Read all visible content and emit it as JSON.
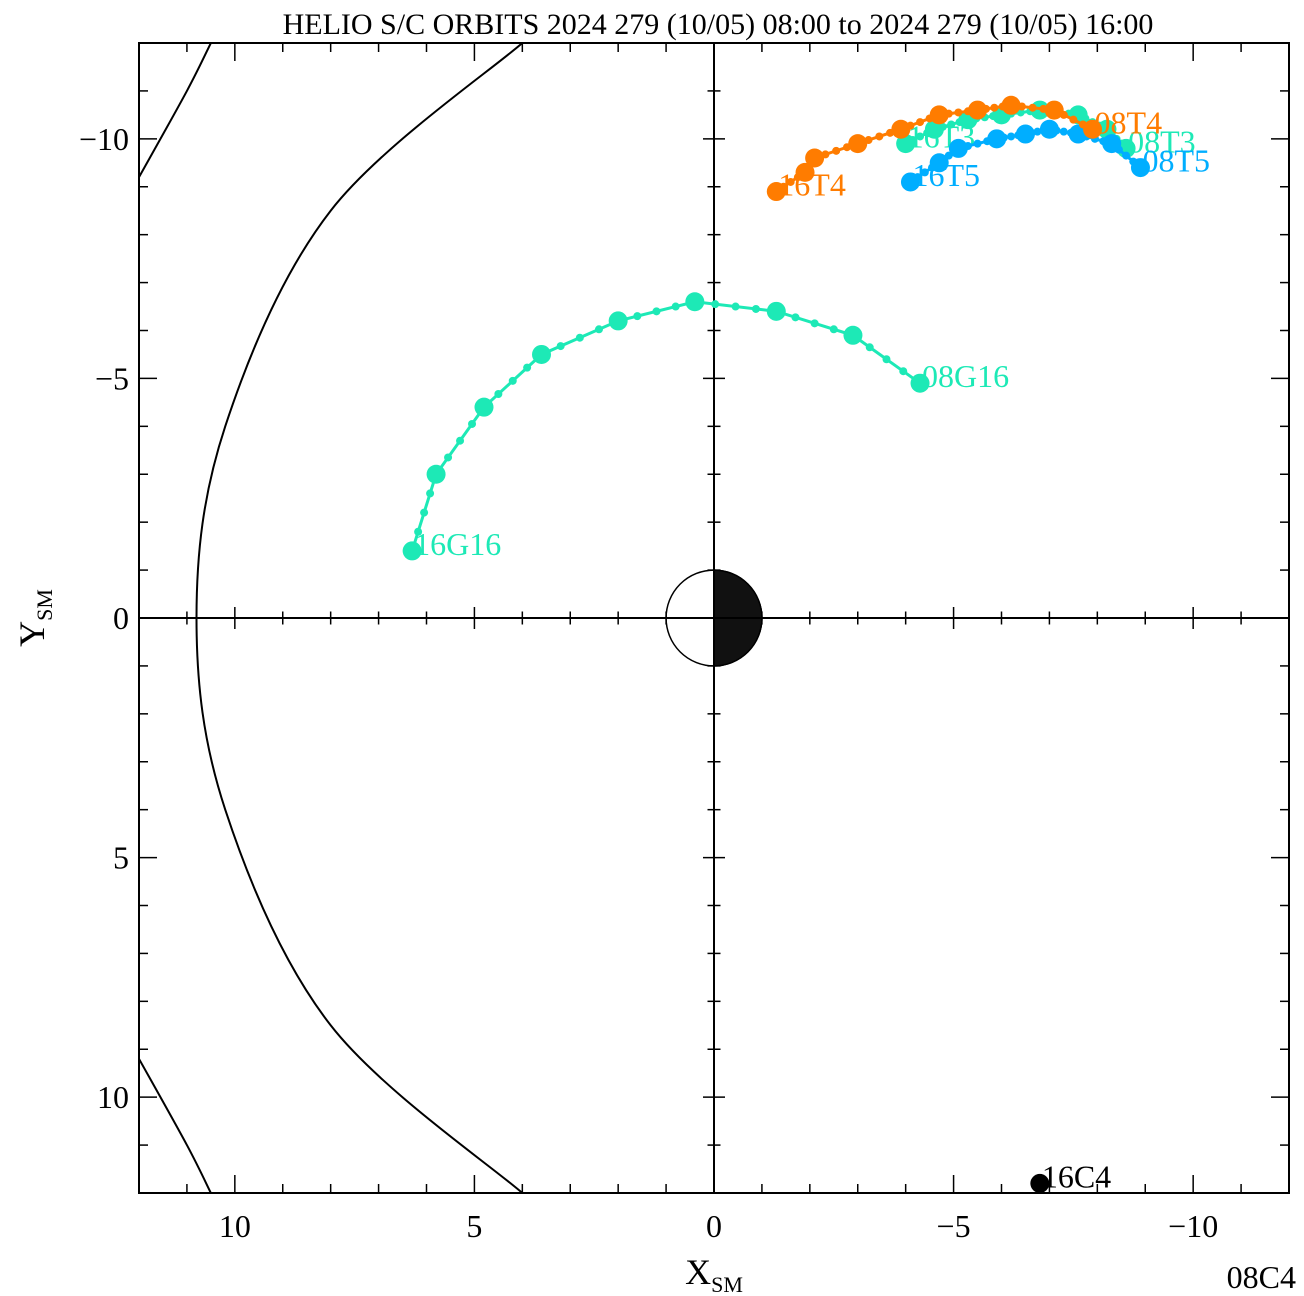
{
  "title": "HELIO S/C ORBITS 2024 279 (10/05) 08:00 to 2024 279 (10/05) 16:00",
  "corner_label": "08C4",
  "chart_data": {
    "type": "scatter",
    "title": "HELIO S/C ORBITS 2024 279 (10/05) 08:00 to 2024 279 (10/05) 16:00",
    "xlabel": {
      "main": "X",
      "sub": "SM"
    },
    "ylabel": {
      "main": "Y",
      "sub": "SM"
    },
    "xlim": [
      12,
      -12
    ],
    "ylim": [
      12,
      -12
    ],
    "x_ticks": [
      10,
      5,
      0,
      -5,
      -10
    ],
    "x_tick_labels": [
      "10",
      "5",
      "0",
      "−5",
      "−10"
    ],
    "y_ticks": [
      -10,
      -5,
      0,
      5,
      10
    ],
    "y_tick_labels": [
      "−10",
      "−5",
      "0",
      "5",
      "10"
    ],
    "grid": false,
    "boundaries": [
      {
        "type": "magnetopause",
        "points": [
          [
            12.0,
            -9.2
          ],
          [
            11.0,
            -11.0
          ],
          [
            10.5,
            -12.0
          ]
        ]
      },
      {
        "type": "bow-shock",
        "points": [
          [
            4.0,
            -12.0
          ],
          [
            8.0,
            -8.5
          ],
          [
            10.2,
            -4.0
          ],
          [
            10.8,
            0.0
          ],
          [
            10.2,
            4.0
          ],
          [
            8.0,
            8.5
          ],
          [
            4.0,
            12.0
          ]
        ]
      },
      {
        "type": "magnetopause",
        "points": [
          [
            12.0,
            9.2
          ],
          [
            11.0,
            11.0
          ],
          [
            10.5,
            12.0
          ]
        ]
      }
    ],
    "series": [
      {
        "name": "G16",
        "color": "#1de9b6",
        "start_label": "08G16",
        "end_label": "16G16",
        "points": [
          [
            -4.3,
            -4.9
          ],
          [
            -2.9,
            -5.9
          ],
          [
            -1.3,
            -6.4
          ],
          [
            0.4,
            -6.6
          ],
          [
            2.0,
            -6.2
          ],
          [
            3.6,
            -5.5
          ],
          [
            4.8,
            -4.4
          ],
          [
            5.8,
            -3.0
          ],
          [
            6.3,
            -1.4
          ]
        ]
      },
      {
        "name": "T3",
        "color": "#1de9b6",
        "start_label": "08T3",
        "end_label": "16T3",
        "points": [
          [
            -8.6,
            -9.8
          ],
          [
            -8.2,
            -10.2
          ],
          [
            -7.6,
            -10.5
          ],
          [
            -6.8,
            -10.6
          ],
          [
            -6.0,
            -10.5
          ],
          [
            -5.3,
            -10.4
          ],
          [
            -4.6,
            -10.2
          ],
          [
            -4.0,
            -9.9
          ]
        ]
      },
      {
        "name": "T5",
        "color": "#00aeff",
        "start_label": "08T5",
        "end_label": "16T5",
        "points": [
          [
            -8.9,
            -9.4
          ],
          [
            -8.3,
            -9.9
          ],
          [
            -7.6,
            -10.1
          ],
          [
            -7.0,
            -10.2
          ],
          [
            -6.5,
            -10.1
          ],
          [
            -5.9,
            -10.0
          ],
          [
            -5.1,
            -9.8
          ],
          [
            -4.7,
            -9.5
          ],
          [
            -4.1,
            -9.1
          ]
        ]
      },
      {
        "name": "T4",
        "color": "#ff7c00",
        "start_label": "08T4",
        "end_label": "16T4",
        "points": [
          [
            -7.9,
            -10.2
          ],
          [
            -7.1,
            -10.6
          ],
          [
            -6.2,
            -10.7
          ],
          [
            -5.5,
            -10.6
          ],
          [
            -4.7,
            -10.5
          ],
          [
            -3.9,
            -10.2
          ],
          [
            -3.0,
            -9.9
          ],
          [
            -2.1,
            -9.6
          ],
          [
            -1.9,
            -9.3
          ],
          [
            -1.3,
            -8.9
          ]
        ]
      },
      {
        "name": "C4",
        "color": "#000000",
        "start_label": "08C4",
        "end_label": "16C4",
        "points": [
          [
            -6.8,
            11.8
          ]
        ]
      }
    ]
  }
}
